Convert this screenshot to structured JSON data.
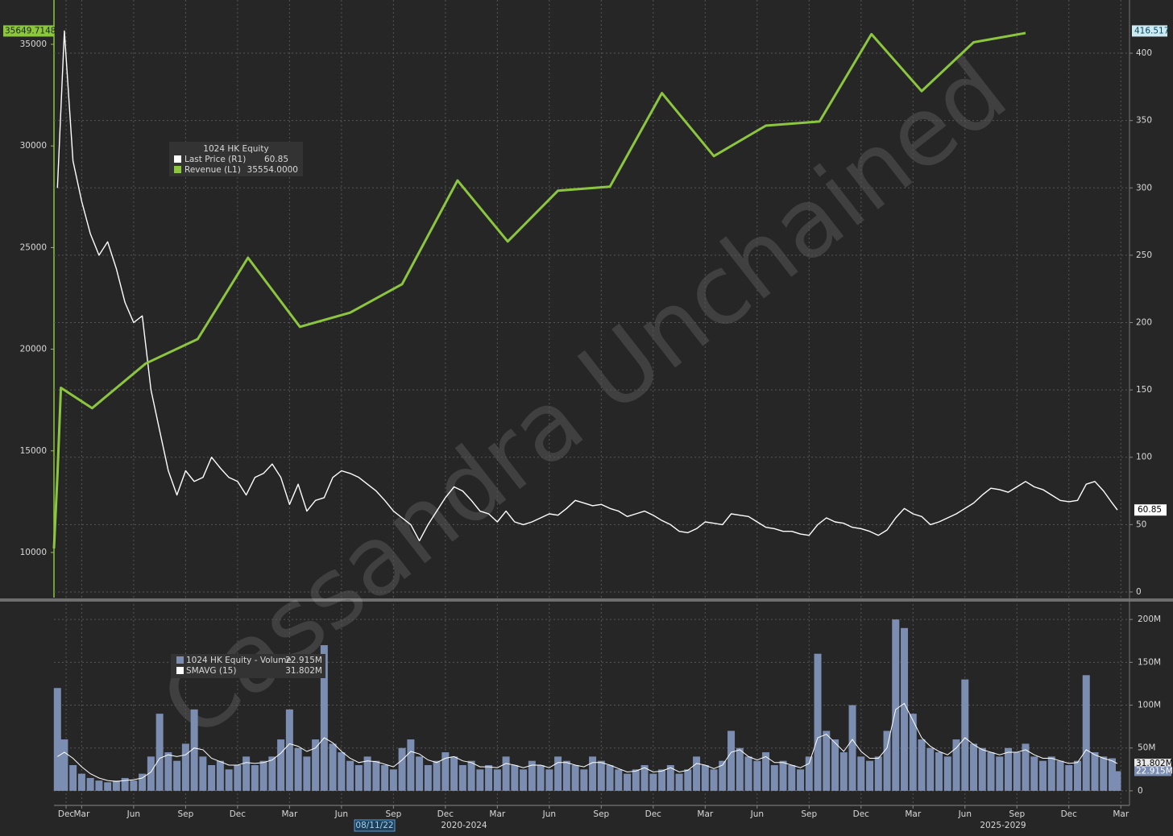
{
  "watermark": "Cassandra Unchained",
  "chart_data": [
    {
      "type": "line",
      "grid": true,
      "legend": {
        "title": "1024 HK Equity"
      },
      "xlim": [
        1.4,
        63.5
      ],
      "ylim": [
        7780,
        37180
      ],
      "yticks": [
        10000,
        15000,
        20000,
        25000,
        30000,
        35000
      ],
      "y_high_label": "35649.7148",
      "y2lim": [
        -4.2,
        439.5
      ],
      "y2ticks": [
        0,
        50,
        100,
        150,
        200,
        250,
        300,
        350,
        400
      ],
      "series": [
        {
          "name": "Last Price (R1)",
          "color": "#ffffff",
          "axis": "y2",
          "x": [
            1.6,
            2,
            2.5,
            3,
            3.5,
            4,
            4.5,
            5,
            5.5,
            6,
            6.5,
            7,
            7.5,
            8,
            8.5,
            9,
            9.5,
            10,
            10.5,
            11,
            11.5,
            12,
            12.5,
            13,
            13.5,
            14,
            14.5,
            15,
            15.5,
            16,
            16.5,
            17,
            17.5,
            18,
            18.5,
            19,
            19.5,
            20,
            20.5,
            21,
            21.5,
            22,
            22.5,
            23,
            23.5,
            24,
            24.5,
            25,
            25.5,
            26,
            26.5,
            27,
            27.5,
            28,
            28.5,
            29,
            29.5,
            30,
            30.5,
            31,
            31.5,
            32,
            32.5,
            33,
            33.5,
            34,
            34.5,
            35,
            35.5,
            36,
            36.5,
            37,
            37.5,
            38,
            38.5,
            39,
            39.5,
            40,
            40.5,
            41,
            41.5,
            42,
            42.5,
            43,
            43.5,
            44,
            44.5,
            45,
            45.5,
            46,
            46.5,
            47,
            47.5,
            48,
            48.5,
            49,
            49.5,
            50,
            50.5,
            51,
            51.5,
            52,
            52.5,
            53,
            53.5,
            54,
            54.5,
            55,
            55.5,
            56,
            56.5,
            57,
            57.5,
            58,
            58.5,
            59,
            59.5,
            60,
            60.5,
            61,
            61.5,
            62,
            62.5,
            62.8
          ],
          "values": [
            300,
            416.517,
            320,
            290,
            266,
            250,
            260,
            240,
            215,
            200,
            205,
            150,
            120,
            90,
            72,
            90,
            82,
            85,
            100,
            92,
            85,
            82,
            72,
            85,
            88,
            95,
            85,
            65,
            80,
            60,
            68,
            70,
            85,
            90,
            88,
            85,
            80,
            75,
            68,
            60,
            55,
            50,
            38,
            50,
            60,
            70,
            78,
            75,
            68,
            60,
            58,
            52,
            60,
            52,
            50,
            52,
            55,
            58,
            57,
            62,
            68,
            66,
            64,
            65,
            62,
            60,
            56,
            58,
            60,
            57,
            53,
            50,
            45,
            44,
            47,
            52,
            51,
            50,
            58,
            57,
            56,
            52,
            48,
            47,
            45,
            45,
            43,
            42,
            50,
            55,
            52,
            51,
            48,
            47,
            45,
            42,
            46,
            55,
            62,
            58,
            56,
            50,
            52,
            55,
            58,
            62,
            66,
            72,
            77,
            76,
            74,
            78,
            82,
            78,
            76,
            72,
            68,
            67,
            68,
            80,
            82,
            75,
            66,
            60.85
          ]
        },
        {
          "name": "Revenue (L1)",
          "color": "#8cc63f",
          "axis": "y",
          "last_label": "35554.0000",
          "x": [
            1.4,
            1.6,
            1.8,
            3.6,
            6.7,
            9.7,
            12.6,
            15.6,
            18.5,
            21.5,
            24.7,
            27.6,
            30.5,
            33.5,
            36.5,
            39.5,
            42.5,
            45.6,
            48.6,
            51.5,
            54.5,
            57.5
          ],
          "values": [
            10200,
            13800,
            18100,
            17100,
            19300,
            20500,
            24500,
            21100,
            21800,
            23200,
            28300,
            25300,
            27800,
            28000,
            32600,
            29500,
            31000,
            31200,
            35500,
            32700,
            35100,
            35554
          ]
        }
      ]
    },
    {
      "type": "bar",
      "grid": true,
      "xlim": [
        1.4,
        63.5
      ],
      "xticks": [
        {
          "value": 2.1,
          "label": "Dec"
        },
        {
          "value": 3,
          "label": "Mar"
        },
        {
          "value": 6,
          "label": "Jun"
        },
        {
          "value": 9,
          "label": "Sep"
        },
        {
          "value": 12,
          "label": "Dec"
        },
        {
          "value": 15,
          "label": "Mar"
        },
        {
          "value": 18,
          "label": "Jun"
        },
        {
          "value": 21,
          "label": "Sep"
        },
        {
          "value": 24,
          "label": "Dec"
        },
        {
          "value": 27,
          "label": "Mar"
        },
        {
          "value": 30,
          "label": "Jun"
        },
        {
          "value": 33,
          "label": "Sep"
        },
        {
          "value": 36,
          "label": "Dec"
        },
        {
          "value": 39,
          "label": "Mar"
        },
        {
          "value": 42,
          "label": "Jun"
        },
        {
          "value": 45,
          "label": "Sep"
        },
        {
          "value": 48,
          "label": "Dec"
        },
        {
          "value": 51,
          "label": "Mar"
        },
        {
          "value": 54,
          "label": "Jun"
        },
        {
          "value": 57,
          "label": "Sep"
        },
        {
          "value": 60,
          "label": "Dec"
        },
        {
          "value": 63,
          "label": "Mar"
        }
      ],
      "x_labels": [
        "08/11/22",
        "2020-2024",
        "2025-2029"
      ],
      "ylim": [
        -17,
        218
      ],
      "yticks": [
        0,
        {
          "value": 50,
          "label": "50M"
        },
        {
          "value": 100,
          "label": "100M"
        },
        {
          "value": 150,
          "label": "150M"
        },
        {
          "value": 200,
          "label": "200M"
        }
      ],
      "x": [
        1.6,
        2,
        2.5,
        3,
        3.5,
        4,
        4.5,
        5,
        5.5,
        6,
        6.5,
        7,
        7.5,
        8,
        8.5,
        9,
        9.5,
        10,
        10.5,
        11,
        11.5,
        12,
        12.5,
        13,
        13.5,
        14,
        14.5,
        15,
        15.5,
        16,
        16.5,
        17,
        17.5,
        18,
        18.5,
        19,
        19.5,
        20,
        20.5,
        21,
        21.5,
        22,
        22.5,
        23,
        23.5,
        24,
        24.5,
        25,
        25.5,
        26,
        26.5,
        27,
        27.5,
        28,
        28.5,
        29,
        29.5,
        30,
        30.5,
        31,
        31.5,
        32,
        32.5,
        33,
        33.5,
        34,
        34.5,
        35,
        35.5,
        36,
        36.5,
        37,
        37.5,
        38,
        38.5,
        39,
        39.5,
        40,
        40.5,
        41,
        41.5,
        42,
        42.5,
        43,
        43.5,
        44,
        44.5,
        45,
        45.5,
        46,
        46.5,
        47,
        47.5,
        48,
        48.5,
        49,
        49.5,
        50,
        50.5,
        51,
        51.5,
        52,
        52.5,
        53,
        53.5,
        54,
        54.5,
        55,
        55.5,
        56,
        56.5,
        57,
        57.5,
        58,
        58.5,
        59,
        59.5,
        60,
        60.5,
        61,
        61.5,
        62,
        62.5,
        62.8
      ],
      "series": [
        {
          "name": "1024 HK Equity - Volume",
          "color": "#7b8db0",
          "last_label": "22.915M",
          "values": [
            120,
            60,
            30,
            20,
            15,
            12,
            10,
            12,
            15,
            12,
            20,
            40,
            90,
            45,
            35,
            55,
            95,
            40,
            30,
            35,
            25,
            30,
            40,
            30,
            35,
            40,
            60,
            95,
            50,
            40,
            60,
            170,
            55,
            45,
            35,
            30,
            40,
            35,
            30,
            25,
            50,
            60,
            40,
            30,
            35,
            45,
            40,
            30,
            35,
            25,
            30,
            25,
            40,
            30,
            25,
            35,
            30,
            25,
            40,
            35,
            30,
            25,
            40,
            35,
            30,
            25,
            20,
            25,
            30,
            20,
            25,
            30,
            20,
            25,
            40,
            30,
            25,
            35,
            70,
            50,
            40,
            35,
            45,
            30,
            35,
            30,
            25,
            40,
            160,
            70,
            60,
            45,
            100,
            40,
            35,
            40,
            70,
            200,
            190,
            90,
            60,
            50,
            45,
            40,
            60,
            130,
            55,
            50,
            45,
            40,
            50,
            45,
            55,
            40,
            35,
            40,
            35,
            30,
            35,
            135,
            45,
            40,
            38,
            22.915
          ]
        },
        {
          "name": "SMAVG (15)",
          "color": "#ffffff",
          "last_label": "31.802M",
          "values": [
            40,
            45,
            38,
            28,
            20,
            15,
            12,
            11,
            12,
            13,
            15,
            22,
            38,
            42,
            40,
            42,
            50,
            48,
            38,
            34,
            30,
            30,
            33,
            32,
            33,
            36,
            44,
            55,
            52,
            46,
            50,
            62,
            56,
            46,
            38,
            33,
            35,
            34,
            31,
            28,
            36,
            46,
            43,
            36,
            33,
            38,
            40,
            35,
            33,
            28,
            28,
            27,
            32,
            30,
            27,
            30,
            30,
            27,
            33,
            33,
            30,
            28,
            33,
            33,
            30,
            26,
            22,
            23,
            27,
            22,
            23,
            27,
            22,
            24,
            32,
            30,
            26,
            30,
            45,
            48,
            40,
            36,
            40,
            33,
            33,
            30,
            27,
            32,
            62,
            66,
            56,
            46,
            60,
            46,
            38,
            38,
            50,
            95,
            102,
            82,
            62,
            52,
            46,
            42,
            50,
            62,
            54,
            48,
            45,
            42,
            45,
            45,
            48,
            42,
            38,
            38,
            35,
            32,
            33,
            48,
            42,
            38,
            35,
            31.802
          ]
        }
      ]
    }
  ]
}
